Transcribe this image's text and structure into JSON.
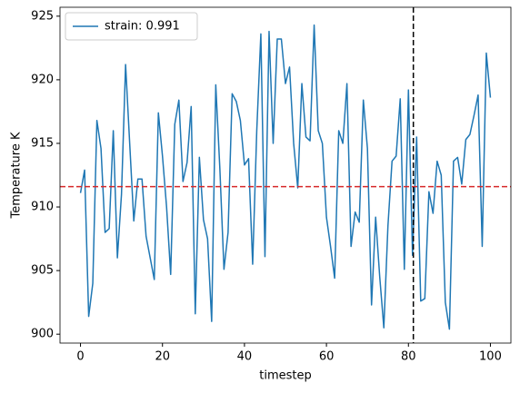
{
  "chart_data": {
    "type": "line",
    "xlabel": "timestep",
    "ylabel": "Temperature K",
    "x": [
      0,
      1,
      2,
      3,
      4,
      5,
      6,
      7,
      8,
      9,
      10,
      11,
      12,
      13,
      14,
      15,
      16,
      17,
      18,
      19,
      20,
      21,
      22,
      23,
      24,
      25,
      26,
      27,
      28,
      29,
      30,
      31,
      32,
      33,
      34,
      35,
      36,
      37,
      38,
      39,
      40,
      41,
      42,
      43,
      44,
      45,
      46,
      47,
      48,
      49,
      50,
      51,
      52,
      53,
      54,
      55,
      56,
      57,
      58,
      59,
      60,
      61,
      62,
      63,
      64,
      65,
      66,
      67,
      68,
      69,
      70,
      71,
      72,
      73,
      74,
      75,
      76,
      77,
      78,
      79,
      80,
      81,
      82,
      83,
      84,
      85,
      86,
      87,
      88,
      89,
      90,
      91,
      92,
      93,
      94,
      95,
      96,
      97,
      98,
      99,
      100
    ],
    "series": [
      {
        "name": "strain: 0.991",
        "color": "#1f77b4",
        "values": [
          911.1,
          912.9,
          901.4,
          904.0,
          916.8,
          914.6,
          908.0,
          908.3,
          916.0,
          906.0,
          911.0,
          921.2,
          915.0,
          908.9,
          912.2,
          912.2,
          907.7,
          906.0,
          904.3,
          917.4,
          914.0,
          910.0,
          904.7,
          916.5,
          918.4,
          912.0,
          913.5,
          917.9,
          901.6,
          913.9,
          909.0,
          907.5,
          901.0,
          919.6,
          913.0,
          905.1,
          908.0,
          918.9,
          918.3,
          916.8,
          913.3,
          913.8,
          905.5,
          916.0,
          923.6,
          906.1,
          923.8,
          915.0,
          923.2,
          923.2,
          919.7,
          921.0,
          915.0,
          911.5,
          919.7,
          915.5,
          915.2,
          924.3,
          916.0,
          915.0,
          909.2,
          906.9,
          904.4,
          916.0,
          915.0,
          919.7,
          906.9,
          909.6,
          908.8,
          918.4,
          914.6,
          902.3,
          909.2,
          904.5,
          900.5,
          908.5,
          913.6,
          914.0,
          918.5,
          905.1,
          919.2,
          906.2,
          915.5,
          902.6,
          902.8,
          911.2,
          909.5,
          913.6,
          912.5,
          902.5,
          900.4,
          913.6,
          913.9,
          911.8,
          915.3,
          915.7,
          917.2,
          918.8,
          906.9,
          922.1,
          918.6
        ]
      }
    ],
    "hline": {
      "value": 911.6,
      "color": "#d62728"
    },
    "vline": {
      "value": 81.2,
      "color": "#000000"
    },
    "xlim": [
      -5,
      105
    ],
    "ylim": [
      899.3,
      925.7
    ],
    "xticks": [
      0,
      20,
      40,
      60,
      80,
      100
    ],
    "yticks": [
      900,
      905,
      910,
      915,
      920,
      925
    ],
    "legend": "upper left",
    "grid": false
  }
}
